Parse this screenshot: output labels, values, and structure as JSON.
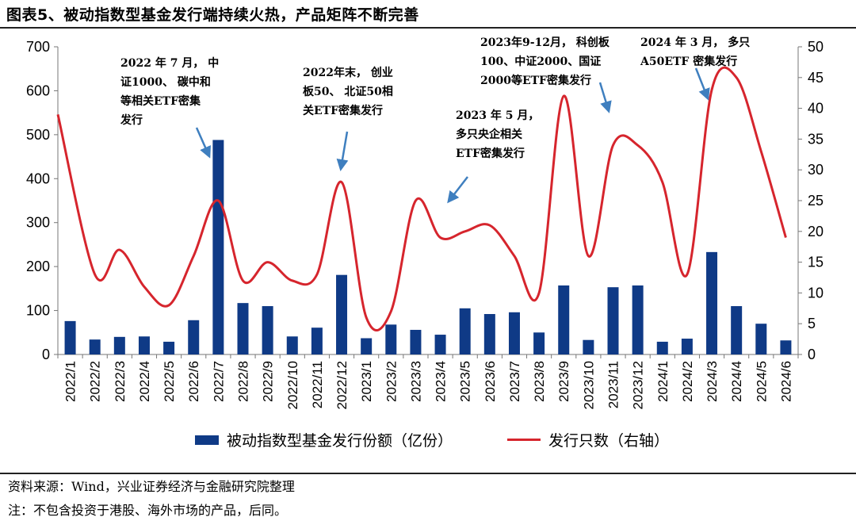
{
  "title": "图表5、被动指数型基金发行端持续火热，产品矩阵不断完善",
  "chart_data": {
    "type": "bar",
    "categories": [
      "2022/1",
      "2022/2",
      "2022/3",
      "2022/4",
      "2022/5",
      "2022/6",
      "2022/7",
      "2022/8",
      "2022/9",
      "2022/10",
      "2022/11",
      "2022/12",
      "2023/1",
      "2023/2",
      "2023/3",
      "2023/4",
      "2023/5",
      "2023/6",
      "2023/7",
      "2023/8",
      "2023/9",
      "2023/10",
      "2023/11",
      "2023/12",
      "2024/1",
      "2024/2",
      "2024/3",
      "2024/4",
      "2024/5",
      "2024/6"
    ],
    "series": [
      {
        "name": "被动指数型基金发行份额（亿份）",
        "type": "bar",
        "axis": "left",
        "color": "#0f3a86",
        "values": [
          76,
          34,
          40,
          41,
          29,
          78,
          488,
          117,
          110,
          41,
          61,
          181,
          37,
          68,
          56,
          45,
          105,
          92,
          96,
          50,
          157,
          33,
          153,
          157,
          29,
          36,
          233,
          110,
          70,
          32
        ]
      },
      {
        "name": "发行只数（右轴）",
        "type": "line",
        "axis": "right",
        "color": "#d6252d",
        "values": [
          39,
          13,
          17,
          11,
          8,
          16,
          25,
          12,
          15,
          12,
          13,
          28,
          6,
          7,
          25,
          19,
          20,
          21,
          16,
          10,
          42,
          16,
          34,
          34,
          28,
          13,
          43,
          45,
          33,
          19
        ]
      }
    ],
    "ylim_left": [
      0,
      700
    ],
    "yticks_left": [
      0,
      100,
      200,
      300,
      400,
      500,
      600,
      700
    ],
    "ylim_right": [
      0,
      50
    ],
    "yticks_right": [
      0,
      5,
      10,
      15,
      20,
      25,
      30,
      35,
      40,
      45,
      50
    ],
    "legend_position": "bottom",
    "grid": false
  },
  "annotations": [
    {
      "text": "2022 年 7 月， 中\n证1000、 碳中和\n等相关ETF密集\n发行"
    },
    {
      "text": "2022年末， 创业\n板50、 北证50相\n关ETF密集发行"
    },
    {
      "text": "2023 年 5 月，\n多只央企相关\nETF密集发行"
    },
    {
      "text": "2023年9-12月， 科创板\n100、中证2000、国证\n2000等ETF密集发行"
    },
    {
      "text": "2024 年 3 月， 多只\nA50ETF 密集发行"
    }
  ],
  "legend": {
    "bar_label": "被动指数型基金发行份额（亿份）",
    "line_label": "发行只数（右轴）"
  },
  "source": "资料来源：Wind，兴业证券经济与金融研究院整理",
  "note": "注：不包含投资于港股、海外市场的产品，后同。"
}
